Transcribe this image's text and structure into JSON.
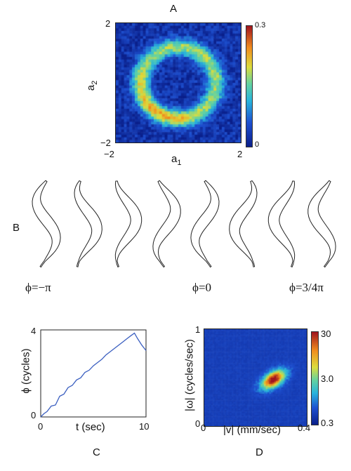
{
  "panels": {
    "A": {
      "letter": "A",
      "xlabel": "a",
      "xlabel_sub": "1",
      "ylabel": "a",
      "ylabel_sub": "2",
      "xticks": [
        "−2",
        "2"
      ],
      "yticks": [
        "2",
        "−2"
      ],
      "cbar_ticks": [
        "0.3",
        "0"
      ]
    },
    "B": {
      "letter": "B",
      "phase_labels": [
        "ϕ=−π",
        "ϕ=0",
        "ϕ=3/4π"
      ]
    },
    "C": {
      "letter": "C",
      "xlabel": "t (sec)",
      "ylabel": "ϕ (cycles)",
      "xticks": [
        "0",
        "10"
      ],
      "yticks": [
        "4",
        "0"
      ]
    },
    "D": {
      "letter": "D",
      "xlabel": "|v| (mm/sec)",
      "ylabel": "|ω| (cycles/sec)",
      "xticks": [
        "0",
        "0.4"
      ],
      "yticks": [
        "1",
        "0"
      ],
      "cbar_ticks": [
        "30",
        "3.0",
        "0.3"
      ]
    }
  },
  "colors": {
    "line": "#3b5fc0",
    "heat_low": "#1e3c9e",
    "heat_high": "#b4141e"
  },
  "chart_data": [
    {
      "type": "heatmap",
      "panel": "A",
      "xlabel": "a1",
      "ylabel": "a2",
      "xlim": [
        -2,
        2
      ],
      "ylim": [
        -2,
        2
      ],
      "color_range": [
        0,
        0.3
      ],
      "description_values": {
        "ring_radius": 1.2,
        "ring_peak_density": 0.3
      }
    },
    {
      "type": "line",
      "panel": "C",
      "xlabel": "t (sec)",
      "ylabel": "ϕ (cycles)",
      "xlim": [
        0,
        10
      ],
      "ylim": [
        0,
        4
      ],
      "x": [
        0,
        0.3,
        0.6,
        1.0,
        1.4,
        1.8,
        2.2,
        2.6,
        3.0,
        3.4,
        3.8,
        4.2,
        4.6,
        5.0,
        5.4,
        5.8,
        6.2,
        6.6,
        7.0,
        7.4,
        7.8,
        8.2,
        8.6,
        8.9,
        9.2,
        9.6,
        10.0
      ],
      "y": [
        0.0,
        0.15,
        0.25,
        0.5,
        0.55,
        0.95,
        1.05,
        1.35,
        1.45,
        1.7,
        1.8,
        2.05,
        2.15,
        2.35,
        2.5,
        2.65,
        2.85,
        3.0,
        3.15,
        3.3,
        3.45,
        3.6,
        3.75,
        3.85,
        3.6,
        3.3,
        3.05
      ]
    },
    {
      "type": "heatmap",
      "panel": "D",
      "xlabel": "|v| (mm/sec)",
      "ylabel": "|ω| (cycles/sec)",
      "xlim": [
        0,
        0.4
      ],
      "ylim": [
        0,
        1
      ],
      "color_scale": "log",
      "color_range": [
        0.3,
        30
      ],
      "peak": {
        "v": 0.27,
        "omega": 0.48,
        "density": 30
      }
    }
  ]
}
